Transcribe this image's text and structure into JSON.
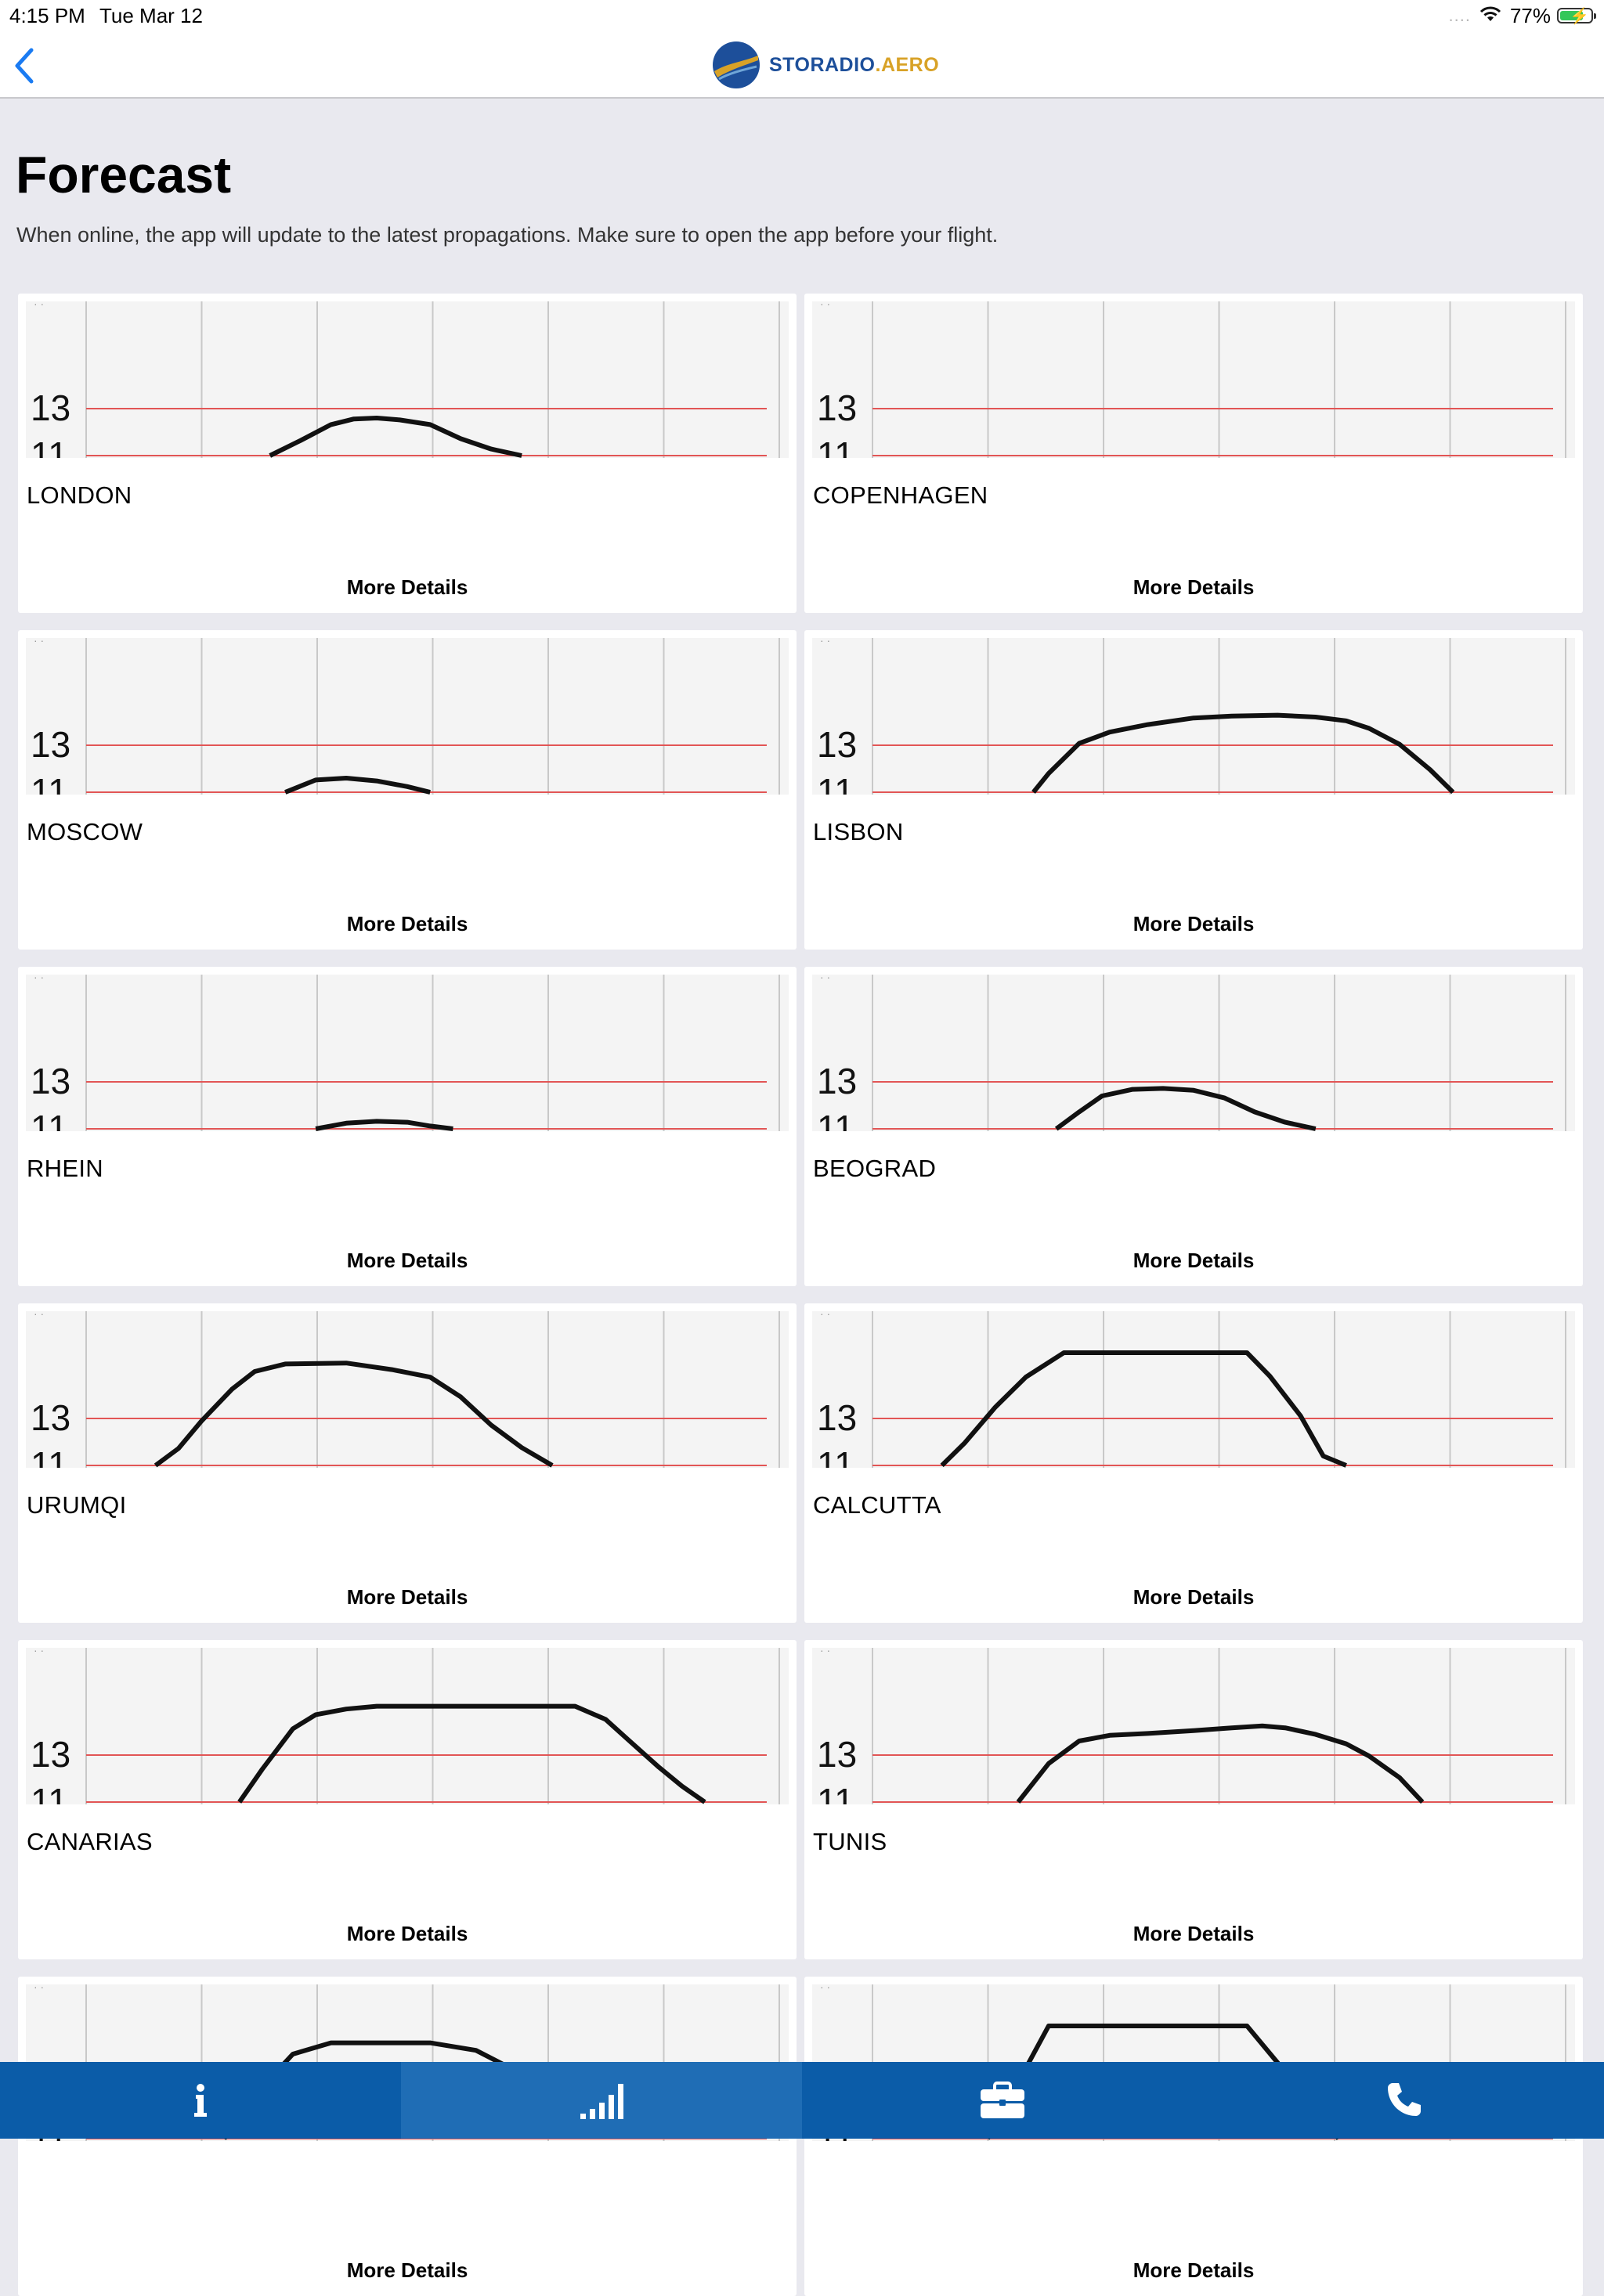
{
  "status_bar": {
    "time": "4:15 PM",
    "date": "Tue Mar 12",
    "signal_dots": "....",
    "battery_percent": "77%",
    "battery_level": 0.77,
    "battery_color": "#34c759"
  },
  "nav": {
    "back_icon": "chevron-left-icon",
    "logo_text_primary": "STORADIO",
    "logo_text_secondary": ".AERO",
    "brand_blue": "#1d4f9a",
    "brand_gold": "#d8a227"
  },
  "page": {
    "title": "Forecast",
    "subtitle": "When online, the app will update to the latest propagations. Make sure to open the app before your flight."
  },
  "more_details_label": "More Details",
  "chart_y_labels": [
    "13",
    "11"
  ],
  "cards": [
    {
      "city": "LONDON",
      "curve": [
        [
          0.32,
          0
        ],
        [
          0.36,
          0.16
        ],
        [
          0.4,
          0.33
        ],
        [
          0.43,
          0.39
        ],
        [
          0.46,
          0.4
        ],
        [
          0.49,
          0.38
        ],
        [
          0.53,
          0.33
        ],
        [
          0.57,
          0.18
        ],
        [
          0.61,
          0.07
        ],
        [
          0.65,
          0
        ]
      ]
    },
    {
      "city": "COPENHAGEN",
      "curve": []
    },
    {
      "city": "MOSCOW",
      "curve": [
        [
          0.34,
          0
        ],
        [
          0.38,
          0.13
        ],
        [
          0.42,
          0.15
        ],
        [
          0.46,
          0.12
        ],
        [
          0.5,
          0.06
        ],
        [
          0.53,
          0
        ]
      ]
    },
    {
      "city": "LISBON",
      "curve": [
        [
          0.29,
          0
        ],
        [
          0.31,
          0.2
        ],
        [
          0.35,
          0.52
        ],
        [
          0.39,
          0.64
        ],
        [
          0.44,
          0.72
        ],
        [
          0.5,
          0.79
        ],
        [
          0.55,
          0.81
        ],
        [
          0.61,
          0.82
        ],
        [
          0.66,
          0.8
        ],
        [
          0.7,
          0.76
        ],
        [
          0.73,
          0.68
        ],
        [
          0.77,
          0.51
        ],
        [
          0.81,
          0.24
        ],
        [
          0.84,
          0
        ]
      ]
    },
    {
      "city": "RHEIN",
      "curve": [
        [
          0.38,
          0
        ],
        [
          0.42,
          0.06
        ],
        [
          0.46,
          0.08
        ],
        [
          0.5,
          0.07
        ],
        [
          0.53,
          0.03
        ],
        [
          0.56,
          0
        ]
      ]
    },
    {
      "city": "BEOGRAD",
      "curve": [
        [
          0.32,
          0
        ],
        [
          0.35,
          0.18
        ],
        [
          0.38,
          0.35
        ],
        [
          0.42,
          0.42
        ],
        [
          0.46,
          0.43
        ],
        [
          0.5,
          0.41
        ],
        [
          0.54,
          0.33
        ],
        [
          0.58,
          0.18
        ],
        [
          0.62,
          0.07
        ],
        [
          0.66,
          0
        ]
      ]
    },
    {
      "city": "URUMQI",
      "curve": [
        [
          0.17,
          0
        ],
        [
          0.2,
          0.18
        ],
        [
          0.23,
          0.47
        ],
        [
          0.27,
          0.81
        ],
        [
          0.3,
          1.0
        ],
        [
          0.34,
          1.08
        ],
        [
          0.42,
          1.09
        ],
        [
          0.48,
          1.02
        ],
        [
          0.53,
          0.94
        ],
        [
          0.57,
          0.73
        ],
        [
          0.61,
          0.43
        ],
        [
          0.65,
          0.19
        ],
        [
          0.69,
          0
        ]
      ]
    },
    {
      "city": "CALCUTTA",
      "curve": [
        [
          0.17,
          0
        ],
        [
          0.2,
          0.24
        ],
        [
          0.24,
          0.62
        ],
        [
          0.28,
          0.94
        ],
        [
          0.33,
          1.2
        ],
        [
          0.57,
          1.2
        ],
        [
          0.6,
          0.95
        ],
        [
          0.64,
          0.53
        ],
        [
          0.67,
          0.1
        ],
        [
          0.7,
          0
        ]
      ]
    },
    {
      "city": "CANARIAS",
      "curve": [
        [
          0.28,
          0
        ],
        [
          0.31,
          0.35
        ],
        [
          0.35,
          0.78
        ],
        [
          0.38,
          0.93
        ],
        [
          0.42,
          0.99
        ],
        [
          0.46,
          1.02
        ],
        [
          0.72,
          1.02
        ],
        [
          0.76,
          0.88
        ],
        [
          0.79,
          0.66
        ],
        [
          0.83,
          0.37
        ],
        [
          0.86,
          0.17
        ],
        [
          0.89,
          0
        ]
      ]
    },
    {
      "city": "TUNIS",
      "curve": [
        [
          0.27,
          0
        ],
        [
          0.31,
          0.41
        ],
        [
          0.35,
          0.65
        ],
        [
          0.39,
          0.71
        ],
        [
          0.44,
          0.73
        ],
        [
          0.5,
          0.76
        ],
        [
          0.55,
          0.79
        ],
        [
          0.59,
          0.81
        ],
        [
          0.62,
          0.79
        ],
        [
          0.66,
          0.72
        ],
        [
          0.7,
          0.62
        ],
        [
          0.73,
          0.49
        ],
        [
          0.77,
          0.26
        ],
        [
          0.8,
          0
        ]
      ]
    },
    {
      "city": "",
      "curve": [
        [
          0.26,
          0
        ],
        [
          0.31,
          0.55
        ],
        [
          0.35,
          0.9
        ],
        [
          0.4,
          1.02
        ],
        [
          0.47,
          1.02
        ],
        [
          0.53,
          1.02
        ],
        [
          0.59,
          0.94
        ],
        [
          0.65,
          0.69
        ],
        [
          0.69,
          0.45
        ],
        [
          0.72,
          0.2
        ]
      ]
    },
    {
      "city": "",
      "curve": [
        [
          0.23,
          0
        ],
        [
          0.27,
          0.6
        ],
        [
          0.31,
          1.2
        ],
        [
          0.57,
          1.2
        ],
        [
          0.61,
          0.81
        ],
        [
          0.65,
          0.4
        ],
        [
          0.69,
          0
        ]
      ]
    }
  ],
  "tabs": [
    {
      "name": "info",
      "icon": "info-icon",
      "active": false
    },
    {
      "name": "forecast",
      "icon": "signal-bars-icon",
      "active": true
    },
    {
      "name": "briefcase",
      "icon": "briefcase-icon",
      "active": false
    },
    {
      "name": "contact",
      "icon": "phone-icon",
      "active": false
    }
  ]
}
